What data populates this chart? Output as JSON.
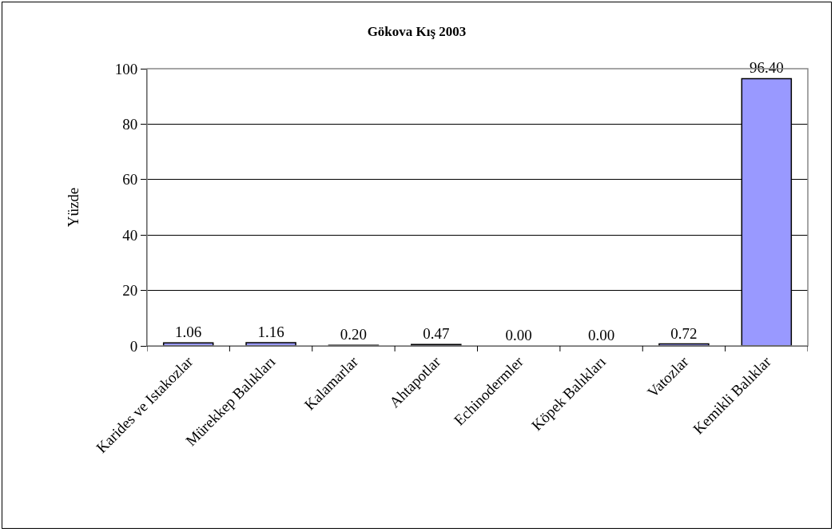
{
  "chart_data": {
    "type": "bar",
    "title": "Gökova Kış 2003",
    "ylabel": "Yüzde",
    "categories": [
      "Karides ve Istakozlar",
      "Mürekkep Balıkları",
      "Kalamarlar",
      "Ahtapotlar",
      "Echinodermler",
      "Köpek Balıkları",
      "Vatozlar",
      "Kemikli Balıklar"
    ],
    "values": [
      1.06,
      1.16,
      0.2,
      0.47,
      0.0,
      0.0,
      0.72,
      96.4
    ],
    "value_labels": [
      "1.06",
      "1.16",
      "0.20",
      "0.47",
      "0.00",
      "0.00",
      "0.72",
      "96.40"
    ],
    "color": "#9999ff",
    "ylim": [
      0,
      100
    ],
    "yticks": [
      0,
      20,
      40,
      60,
      80,
      100
    ],
    "grid": "y",
    "legend": false
  }
}
